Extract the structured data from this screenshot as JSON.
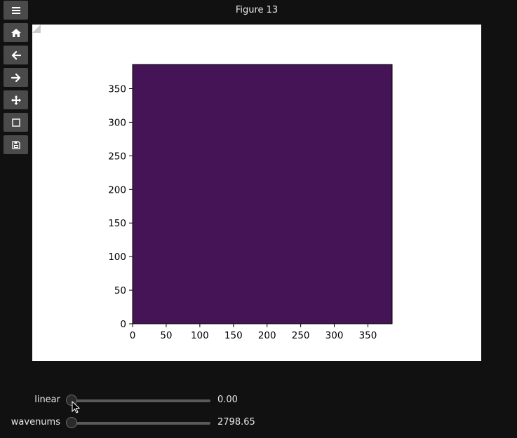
{
  "figure": {
    "title": "Figure 13"
  },
  "toolbar": {
    "buttons": [
      {
        "name": "menu-button",
        "icon": "hamburger-menu-icon"
      },
      {
        "name": "home-button",
        "icon": "home-icon"
      },
      {
        "name": "back-button",
        "icon": "arrow-left-icon"
      },
      {
        "name": "forward-button",
        "icon": "arrow-right-icon"
      },
      {
        "name": "pan-button",
        "icon": "move-icon"
      },
      {
        "name": "zoom-rect-button",
        "icon": "square-icon"
      },
      {
        "name": "save-button",
        "icon": "floppy-disk-icon"
      }
    ]
  },
  "chart_data": {
    "type": "heatmap",
    "title": "",
    "xlabel": "",
    "ylabel": "",
    "xlim": [
      0,
      386
    ],
    "ylim": [
      0,
      386
    ],
    "xticks": [
      "0",
      "50",
      "100",
      "150",
      "200",
      "250",
      "300",
      "350"
    ],
    "yticks": [
      "0",
      "50",
      "100",
      "150",
      "200",
      "250",
      "300",
      "350"
    ],
    "fill_color": "#441456",
    "grid": false
  },
  "sliders": [
    {
      "label": "linear",
      "value": "0.00",
      "fraction": 0.0
    },
    {
      "label": "wavenums",
      "value": "2798.65",
      "fraction": 0.0
    }
  ],
  "colors": {
    "background": "#111111",
    "button": "#4a4a4a",
    "plot_fill": "#441456"
  }
}
